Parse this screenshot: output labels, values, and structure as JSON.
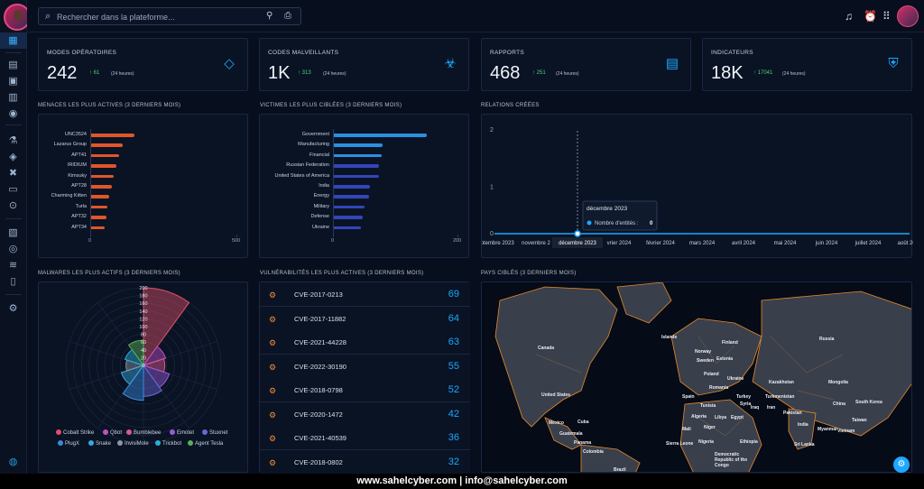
{
  "search": {
    "placeholder": "Rechercher dans la plateforme..."
  },
  "stats": [
    {
      "label": "MODES OPÉRATOIRES",
      "value": "242",
      "delta": "61",
      "period": "(24 heures)",
      "icon": "diamond-icon"
    },
    {
      "label": "CODES MALVEILLANTS",
      "value": "1K",
      "delta": "313",
      "period": "(24 heures)",
      "icon": "biohazard-icon"
    },
    {
      "label": "RAPPORTS",
      "value": "468",
      "delta": "251",
      "period": "(24 heures)",
      "icon": "document-icon"
    },
    {
      "label": "INDICATEURS",
      "value": "18K",
      "delta": "17041",
      "period": "(24 heures)",
      "icon": "shield-search-icon"
    }
  ],
  "threats": {
    "title": "MENACES LES PLUS ACTIVES (3 DERNIERS MOIS)",
    "color": "#e0562a",
    "chart_data": {
      "type": "bar",
      "categories": [
        "UNC3524",
        "Lazarus Group",
        "APT41",
        "IRIDIUM",
        "Kimsuky",
        "APT28",
        "Charming Kitten",
        "Turla",
        "APT32",
        "APT34"
      ],
      "values": [
        150,
        110,
        100,
        90,
        80,
        75,
        65,
        60,
        55,
        50
      ],
      "xlim": [
        0,
        500
      ],
      "ticks": [
        "0",
        "500"
      ]
    }
  },
  "victims": {
    "title": "VICTIMES LES PLUS CIBLÉES (3 DERNIERS MOIS)",
    "colors": [
      "#2b8fe0",
      "#2b8fe0",
      "#2b8fe0",
      "#3346b8",
      "#3346b8",
      "#3346b8",
      "#3346b8",
      "#3346b8",
      "#3346b8",
      "#3346b8"
    ],
    "chart_data": {
      "type": "bar",
      "categories": [
        "Government",
        "Manufacturing",
        "Financial",
        "Russian Federation",
        "United States of America",
        "India",
        "Energy",
        "Military",
        "Defense",
        "Ukraine"
      ],
      "values": [
        150,
        80,
        78,
        74,
        74,
        60,
        58,
        50,
        48,
        45
      ],
      "xlim": [
        0,
        200
      ],
      "ticks": [
        "0",
        "200"
      ]
    }
  },
  "relations": {
    "title": "RELATIONS CRÉÉES",
    "chart_data": {
      "type": "line",
      "x": [
        "septembre 2023",
        "novembre 2023",
        "décembre 2023",
        "janvier 2024",
        "février 2024",
        "mars 2024",
        "avril 2024",
        "mai 2024",
        "juin 2024",
        "juillet 2024",
        "août 2024"
      ],
      "series": [
        {
          "values": [
            0,
            0,
            0,
            0,
            0,
            0,
            0,
            0,
            0,
            0,
            0
          ]
        }
      ],
      "ylim": [
        0,
        2
      ],
      "yticks": [
        "2",
        "1",
        "0"
      ],
      "xticks": [
        "septembre 2023",
        "novembre 2",
        "",
        "vrier 2024",
        "février 2024",
        "mars 2024",
        "avril 2024",
        "mai 2024",
        "juin 2024",
        "juillet 2024",
        "août 2024"
      ]
    },
    "tooltip": {
      "title": "décembre 2023",
      "label": "Nombre d'entités :",
      "value": "0"
    },
    "axis_tooltip": "décembre 2023"
  },
  "malwares": {
    "title": "MALWARES LES PLUS ACTIFS (3 DERNIERS MOIS)",
    "chart_data": {
      "type": "polar-area",
      "categories": [
        "Cobalt Strike",
        "Qbot",
        "Bumblebee",
        "Emotet",
        "Stuxnet",
        "PlugX",
        "Snake",
        "InvisiMole",
        "Trickbot",
        "Agent Tesla"
      ],
      "values": [
        200,
        60,
        55,
        70,
        80,
        90,
        60,
        45,
        50,
        65
      ],
      "rticks": [
        "200",
        "180",
        "160",
        "140",
        "120",
        "100",
        "80",
        "60",
        "40",
        "20",
        "0"
      ],
      "colors": [
        "#e0506a",
        "#c050c8",
        "#e05890",
        "#9a5ad8",
        "#6868d8",
        "#3a8ae0",
        "#3aa8e0",
        "#8898a8",
        "#2ab0d8",
        "#5ab05a"
      ]
    }
  },
  "vulns": {
    "title": "VULNÉRABILITÉS LES PLUS ACTIVES (3 DERNIERS MOIS)",
    "items": [
      {
        "name": "CVE-2017-0213",
        "count": "69"
      },
      {
        "name": "CVE-2017-11882",
        "count": "64"
      },
      {
        "name": "CVE-2021-44228",
        "count": "63"
      },
      {
        "name": "CVE-2022-30190",
        "count": "55"
      },
      {
        "name": "CVE-2018-0798",
        "count": "52"
      },
      {
        "name": "CVE-2020-1472",
        "count": "42"
      },
      {
        "name": "CVE-2021-40539",
        "count": "36"
      },
      {
        "name": "CVE-2018-0802",
        "count": "32"
      }
    ]
  },
  "map": {
    "title": "PAYS CIBLÉS (3 DERNIERS MOIS)",
    "labels": [
      "Canada",
      "United States",
      "Mexico",
      "Cuba",
      "Guatemala",
      "Panama",
      "Colombia",
      "Brazil",
      "Islande",
      "Norway",
      "Finland",
      "Russia",
      "Sweden",
      "Estonia",
      "Poland",
      "Ukraine",
      "Romania",
      "Turkey",
      "Kazakhstan",
      "Mongolia",
      "Turkmenistan",
      "Iran",
      "Iraq",
      "Syria",
      "Pakistan",
      "China",
      "India",
      "South Korea",
      "Taiwan",
      "Vietnam",
      "Myanmar",
      "Sri Lanka",
      "Spain",
      "Algeria",
      "Tunisia",
      "Libya",
      "Egypt",
      "Niger",
      "Nigeria",
      "Ethiopia",
      "Sierra Leone",
      "Mali",
      "Democratic Republic of the Congo"
    ]
  },
  "footer": {
    "text": "www.sahelcyber.com  |  info@sahelcyber.com"
  }
}
